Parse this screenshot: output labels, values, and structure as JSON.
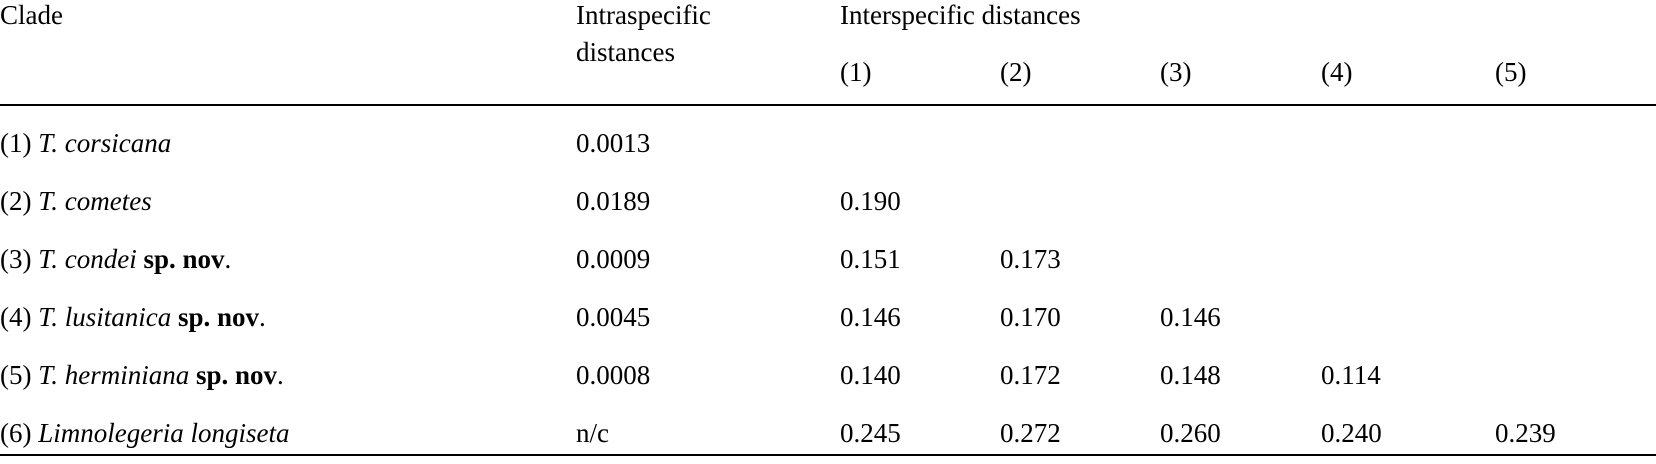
{
  "header": {
    "clade": "Clade",
    "intra_line1": "Intraspecific",
    "intra_line2": "distances",
    "inter": "Interspecific distances",
    "cols": [
      "(1)",
      "(2)",
      "(3)",
      "(4)",
      "(5)"
    ]
  },
  "rows": [
    {
      "num": "(1) ",
      "name": "T. corsicana",
      "suffix": "",
      "tail": "",
      "intra": "0.0013",
      "d": [
        "",
        "",
        "",
        "",
        ""
      ]
    },
    {
      "num": "(2) ",
      "name": "T. cometes",
      "suffix": "",
      "tail": "",
      "intra": "0.0189",
      "d": [
        "0.190",
        "",
        "",
        "",
        ""
      ]
    },
    {
      "num": "(3) ",
      "name": "T. condei",
      "suffix": " sp. nov",
      "tail": ".",
      "intra": "0.0009",
      "d": [
        "0.151",
        "0.173",
        "",
        "",
        ""
      ]
    },
    {
      "num": "(4) ",
      "name": "T. lusitanica",
      "suffix": " sp. nov",
      "tail": ".",
      "intra": "0.0045",
      "d": [
        "0.146",
        "0.170",
        "0.146",
        "",
        ""
      ]
    },
    {
      "num": "(5) ",
      "name": "T. herminiana",
      "suffix": " sp. nov",
      "tail": ".",
      "intra": "0.0008",
      "d": [
        "0.140",
        "0.172",
        "0.148",
        "0.114",
        ""
      ]
    },
    {
      "num": "(6) ",
      "name": "Limnolegeria longiseta",
      "suffix": "",
      "tail": "",
      "intra": "n/c",
      "d": [
        "0.245",
        "0.272",
        "0.260",
        "0.240",
        "0.239"
      ]
    }
  ]
}
